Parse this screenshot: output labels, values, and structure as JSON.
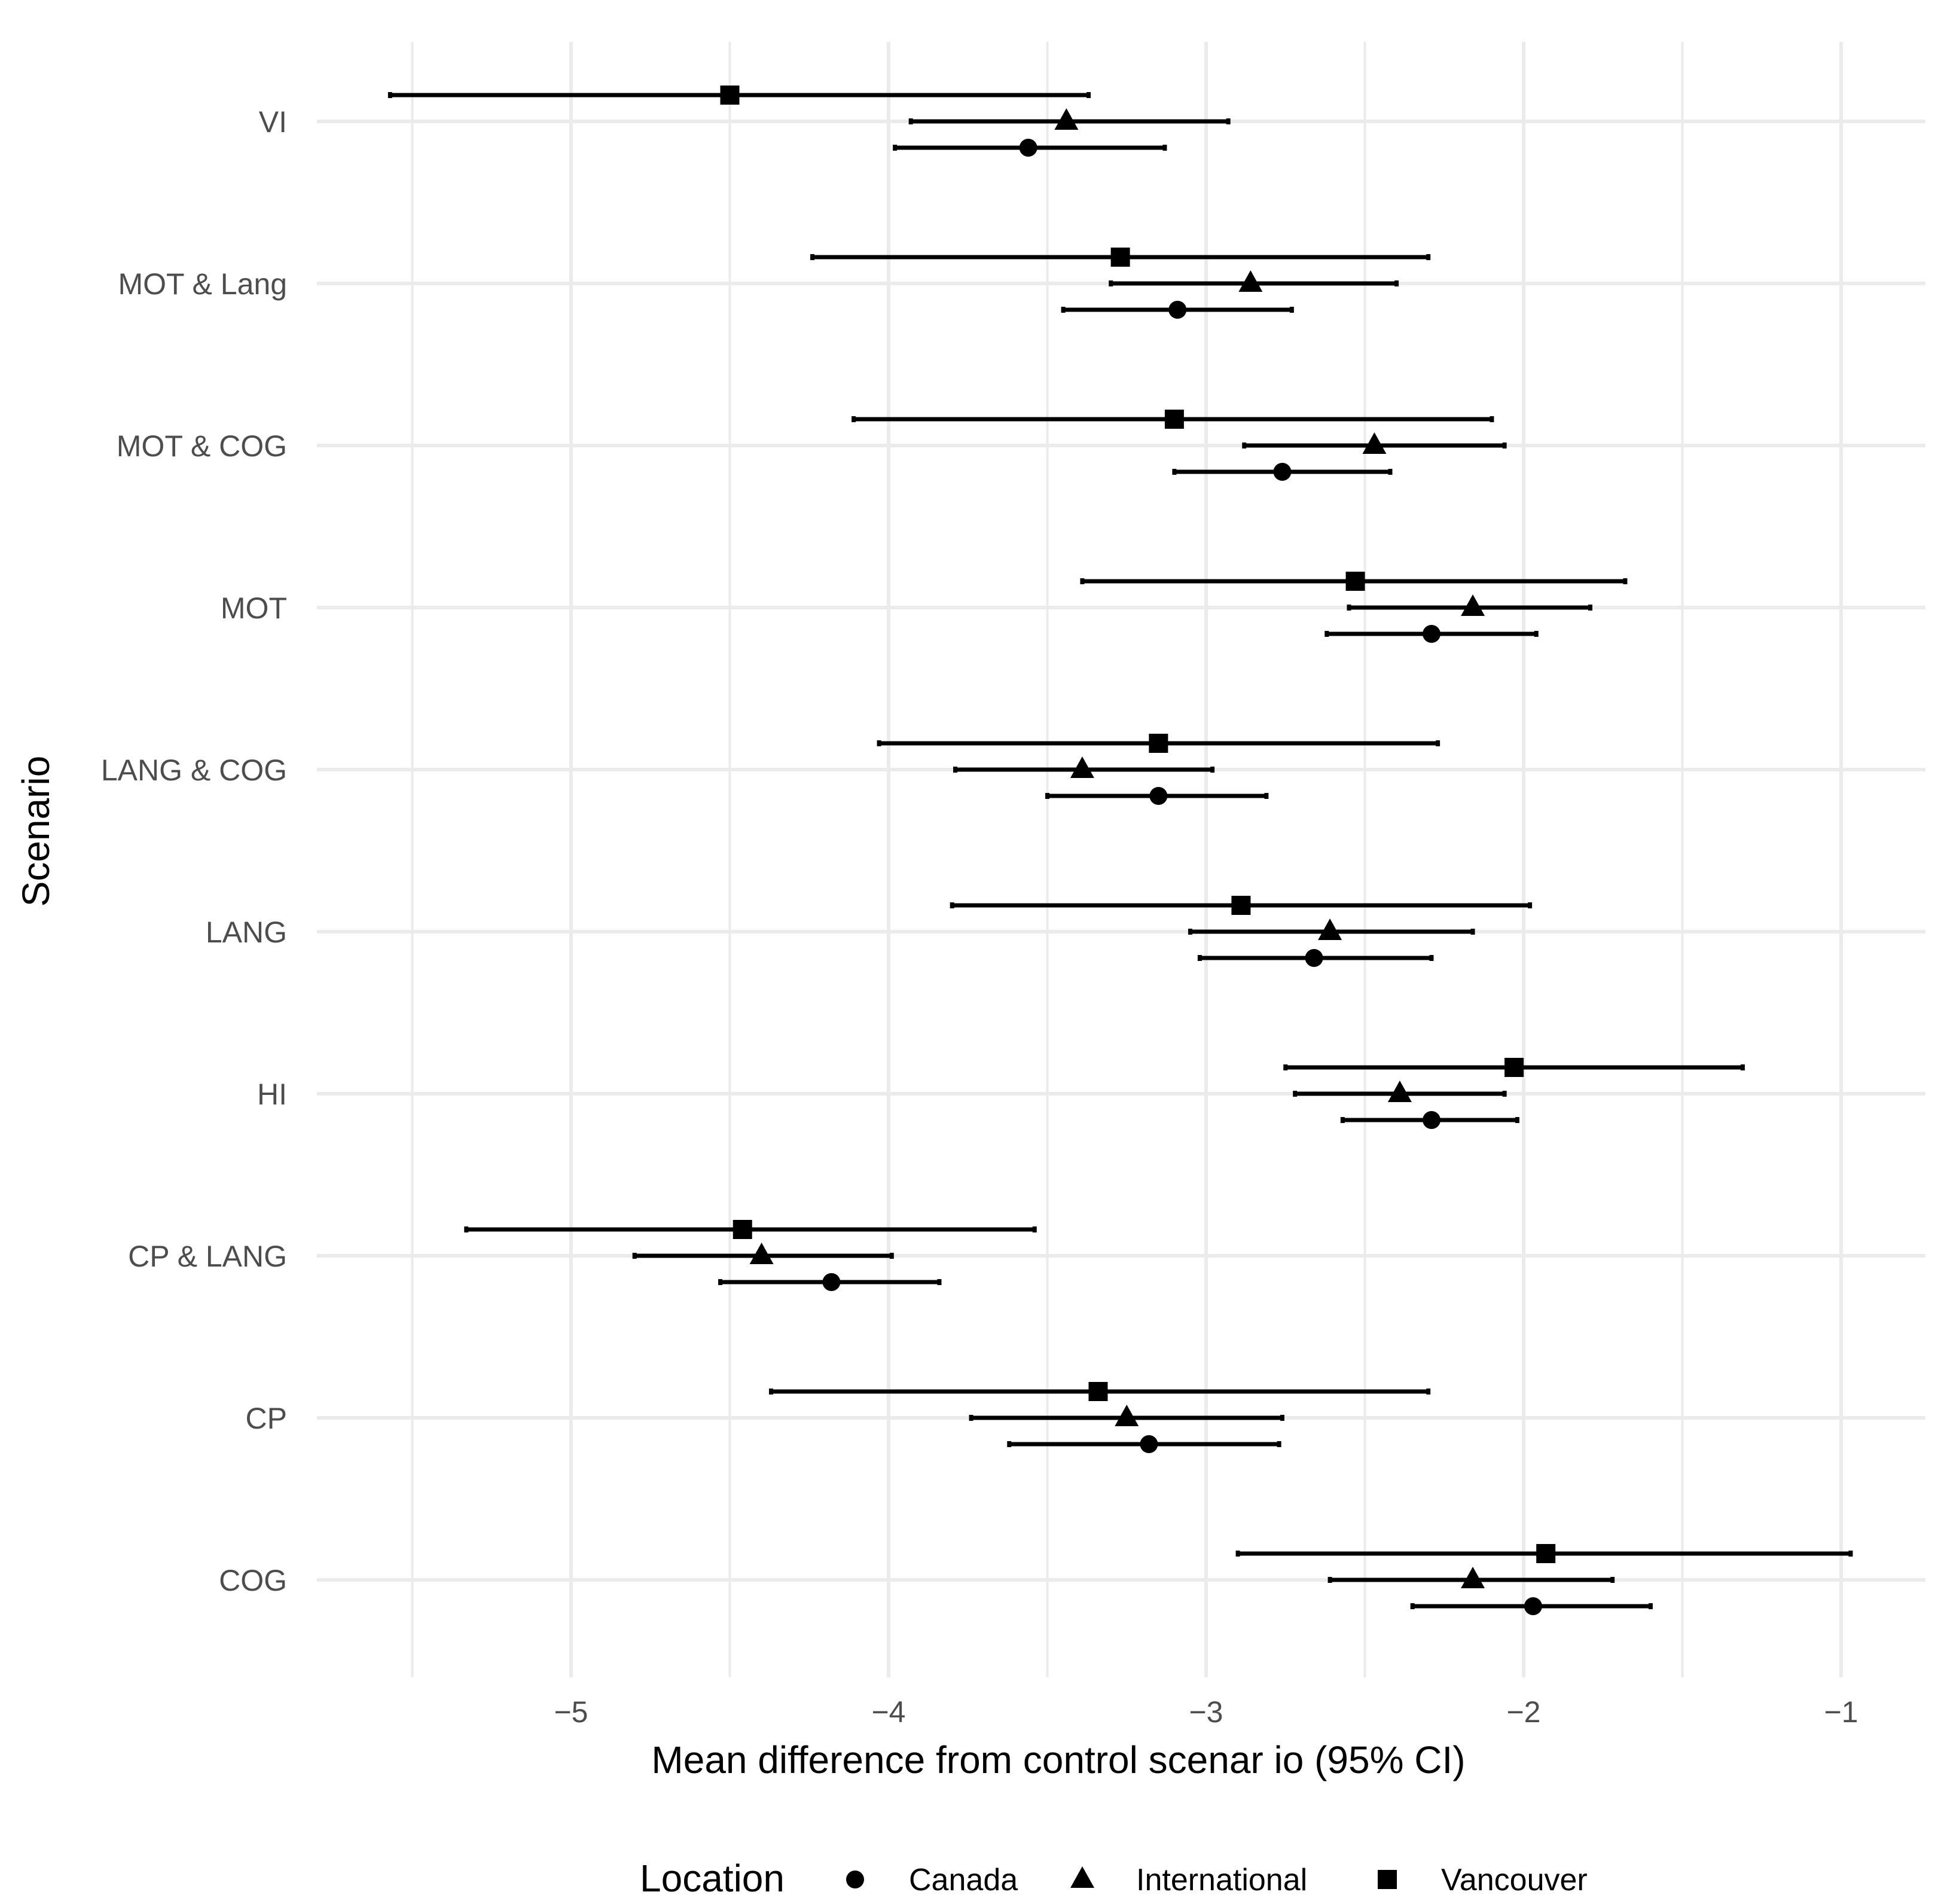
{
  "chart_data": {
    "type": "scatter",
    "subtype": "forest-plot-with-95pct-ci",
    "title": "",
    "xlabel": "Mean difference from control scenar io (95% CI)",
    "ylabel": "Scenario",
    "xlim": [
      -5.75,
      -0.75
    ],
    "xticks": [
      -5,
      -4,
      -3,
      -2,
      -1
    ],
    "xtick_labels": [
      "−5",
      "−4",
      "−3",
      "−2",
      "−1"
    ],
    "categories": [
      "VI",
      "MOT & Lang",
      "MOT & COG",
      "MOT",
      "LANG & COG",
      "LANG",
      "HI",
      "CP & LANG",
      "CP",
      "COG"
    ],
    "grid": true,
    "legend": {
      "title": "Location",
      "position": "bottom",
      "entries": [
        {
          "name": "Canada",
          "shape": "circle"
        },
        {
          "name": "International",
          "shape": "triangle"
        },
        {
          "name": "Vancouver",
          "shape": "square"
        }
      ]
    },
    "series": [
      {
        "name": "Vancouver",
        "shape": "square",
        "values": [
          {
            "scenario": "VI",
            "mean": -4.5,
            "lower": -5.57,
            "upper": -3.37
          },
          {
            "scenario": "MOT & Lang",
            "mean": -3.27,
            "lower": -4.24,
            "upper": -2.3
          },
          {
            "scenario": "MOT & COG",
            "mean": -3.1,
            "lower": -4.11,
            "upper": -2.1
          },
          {
            "scenario": "MOT",
            "mean": -2.53,
            "lower": -3.39,
            "upper": -1.68
          },
          {
            "scenario": "LANG & COG",
            "mean": -3.15,
            "lower": -4.03,
            "upper": -2.27
          },
          {
            "scenario": "LANG",
            "mean": -2.89,
            "lower": -3.8,
            "upper": -1.98
          },
          {
            "scenario": "HI",
            "mean": -2.03,
            "lower": -2.75,
            "upper": -1.31
          },
          {
            "scenario": "CP & LANG",
            "mean": -4.46,
            "lower": -5.33,
            "upper": -3.54
          },
          {
            "scenario": "CP",
            "mean": -3.34,
            "lower": -4.37,
            "upper": -2.3
          },
          {
            "scenario": "COG",
            "mean": -1.93,
            "lower": -2.9,
            "upper": -0.97
          }
        ]
      },
      {
        "name": "International",
        "shape": "triangle",
        "values": [
          {
            "scenario": "VI",
            "mean": -3.44,
            "lower": -3.93,
            "upper": -2.93
          },
          {
            "scenario": "MOT & Lang",
            "mean": -2.86,
            "lower": -3.3,
            "upper": -2.4
          },
          {
            "scenario": "MOT & COG",
            "mean": -2.47,
            "lower": -2.88,
            "upper": -2.06
          },
          {
            "scenario": "MOT",
            "mean": -2.16,
            "lower": -2.55,
            "upper": -1.79
          },
          {
            "scenario": "LANG & COG",
            "mean": -3.39,
            "lower": -3.79,
            "upper": -2.98
          },
          {
            "scenario": "LANG",
            "mean": -2.61,
            "lower": -3.05,
            "upper": -2.16
          },
          {
            "scenario": "HI",
            "mean": -2.39,
            "lower": -2.72,
            "upper": -2.06
          },
          {
            "scenario": "CP & LANG",
            "mean": -4.4,
            "lower": -4.8,
            "upper": -3.99
          },
          {
            "scenario": "CP",
            "mean": -3.25,
            "lower": -3.74,
            "upper": -2.76
          },
          {
            "scenario": "COG",
            "mean": -2.16,
            "lower": -2.61,
            "upper": -1.72
          }
        ]
      },
      {
        "name": "Canada",
        "shape": "circle",
        "values": [
          {
            "scenario": "VI",
            "mean": -3.56,
            "lower": -3.98,
            "upper": -3.13
          },
          {
            "scenario": "MOT & Lang",
            "mean": -3.09,
            "lower": -3.45,
            "upper": -2.73
          },
          {
            "scenario": "MOT & COG",
            "mean": -2.76,
            "lower": -3.1,
            "upper": -2.42
          },
          {
            "scenario": "MOT",
            "mean": -2.29,
            "lower": -2.62,
            "upper": -1.96
          },
          {
            "scenario": "LANG & COG",
            "mean": -3.15,
            "lower": -3.5,
            "upper": -2.81
          },
          {
            "scenario": "LANG",
            "mean": -2.66,
            "lower": -3.02,
            "upper": -2.29
          },
          {
            "scenario": "HI",
            "mean": -2.29,
            "lower": -2.57,
            "upper": -2.02
          },
          {
            "scenario": "CP & LANG",
            "mean": -4.18,
            "lower": -4.53,
            "upper": -3.84
          },
          {
            "scenario": "CP",
            "mean": -3.18,
            "lower": -3.62,
            "upper": -2.77
          },
          {
            "scenario": "COG",
            "mean": -1.97,
            "lower": -2.35,
            "upper": -1.6
          }
        ]
      }
    ]
  }
}
